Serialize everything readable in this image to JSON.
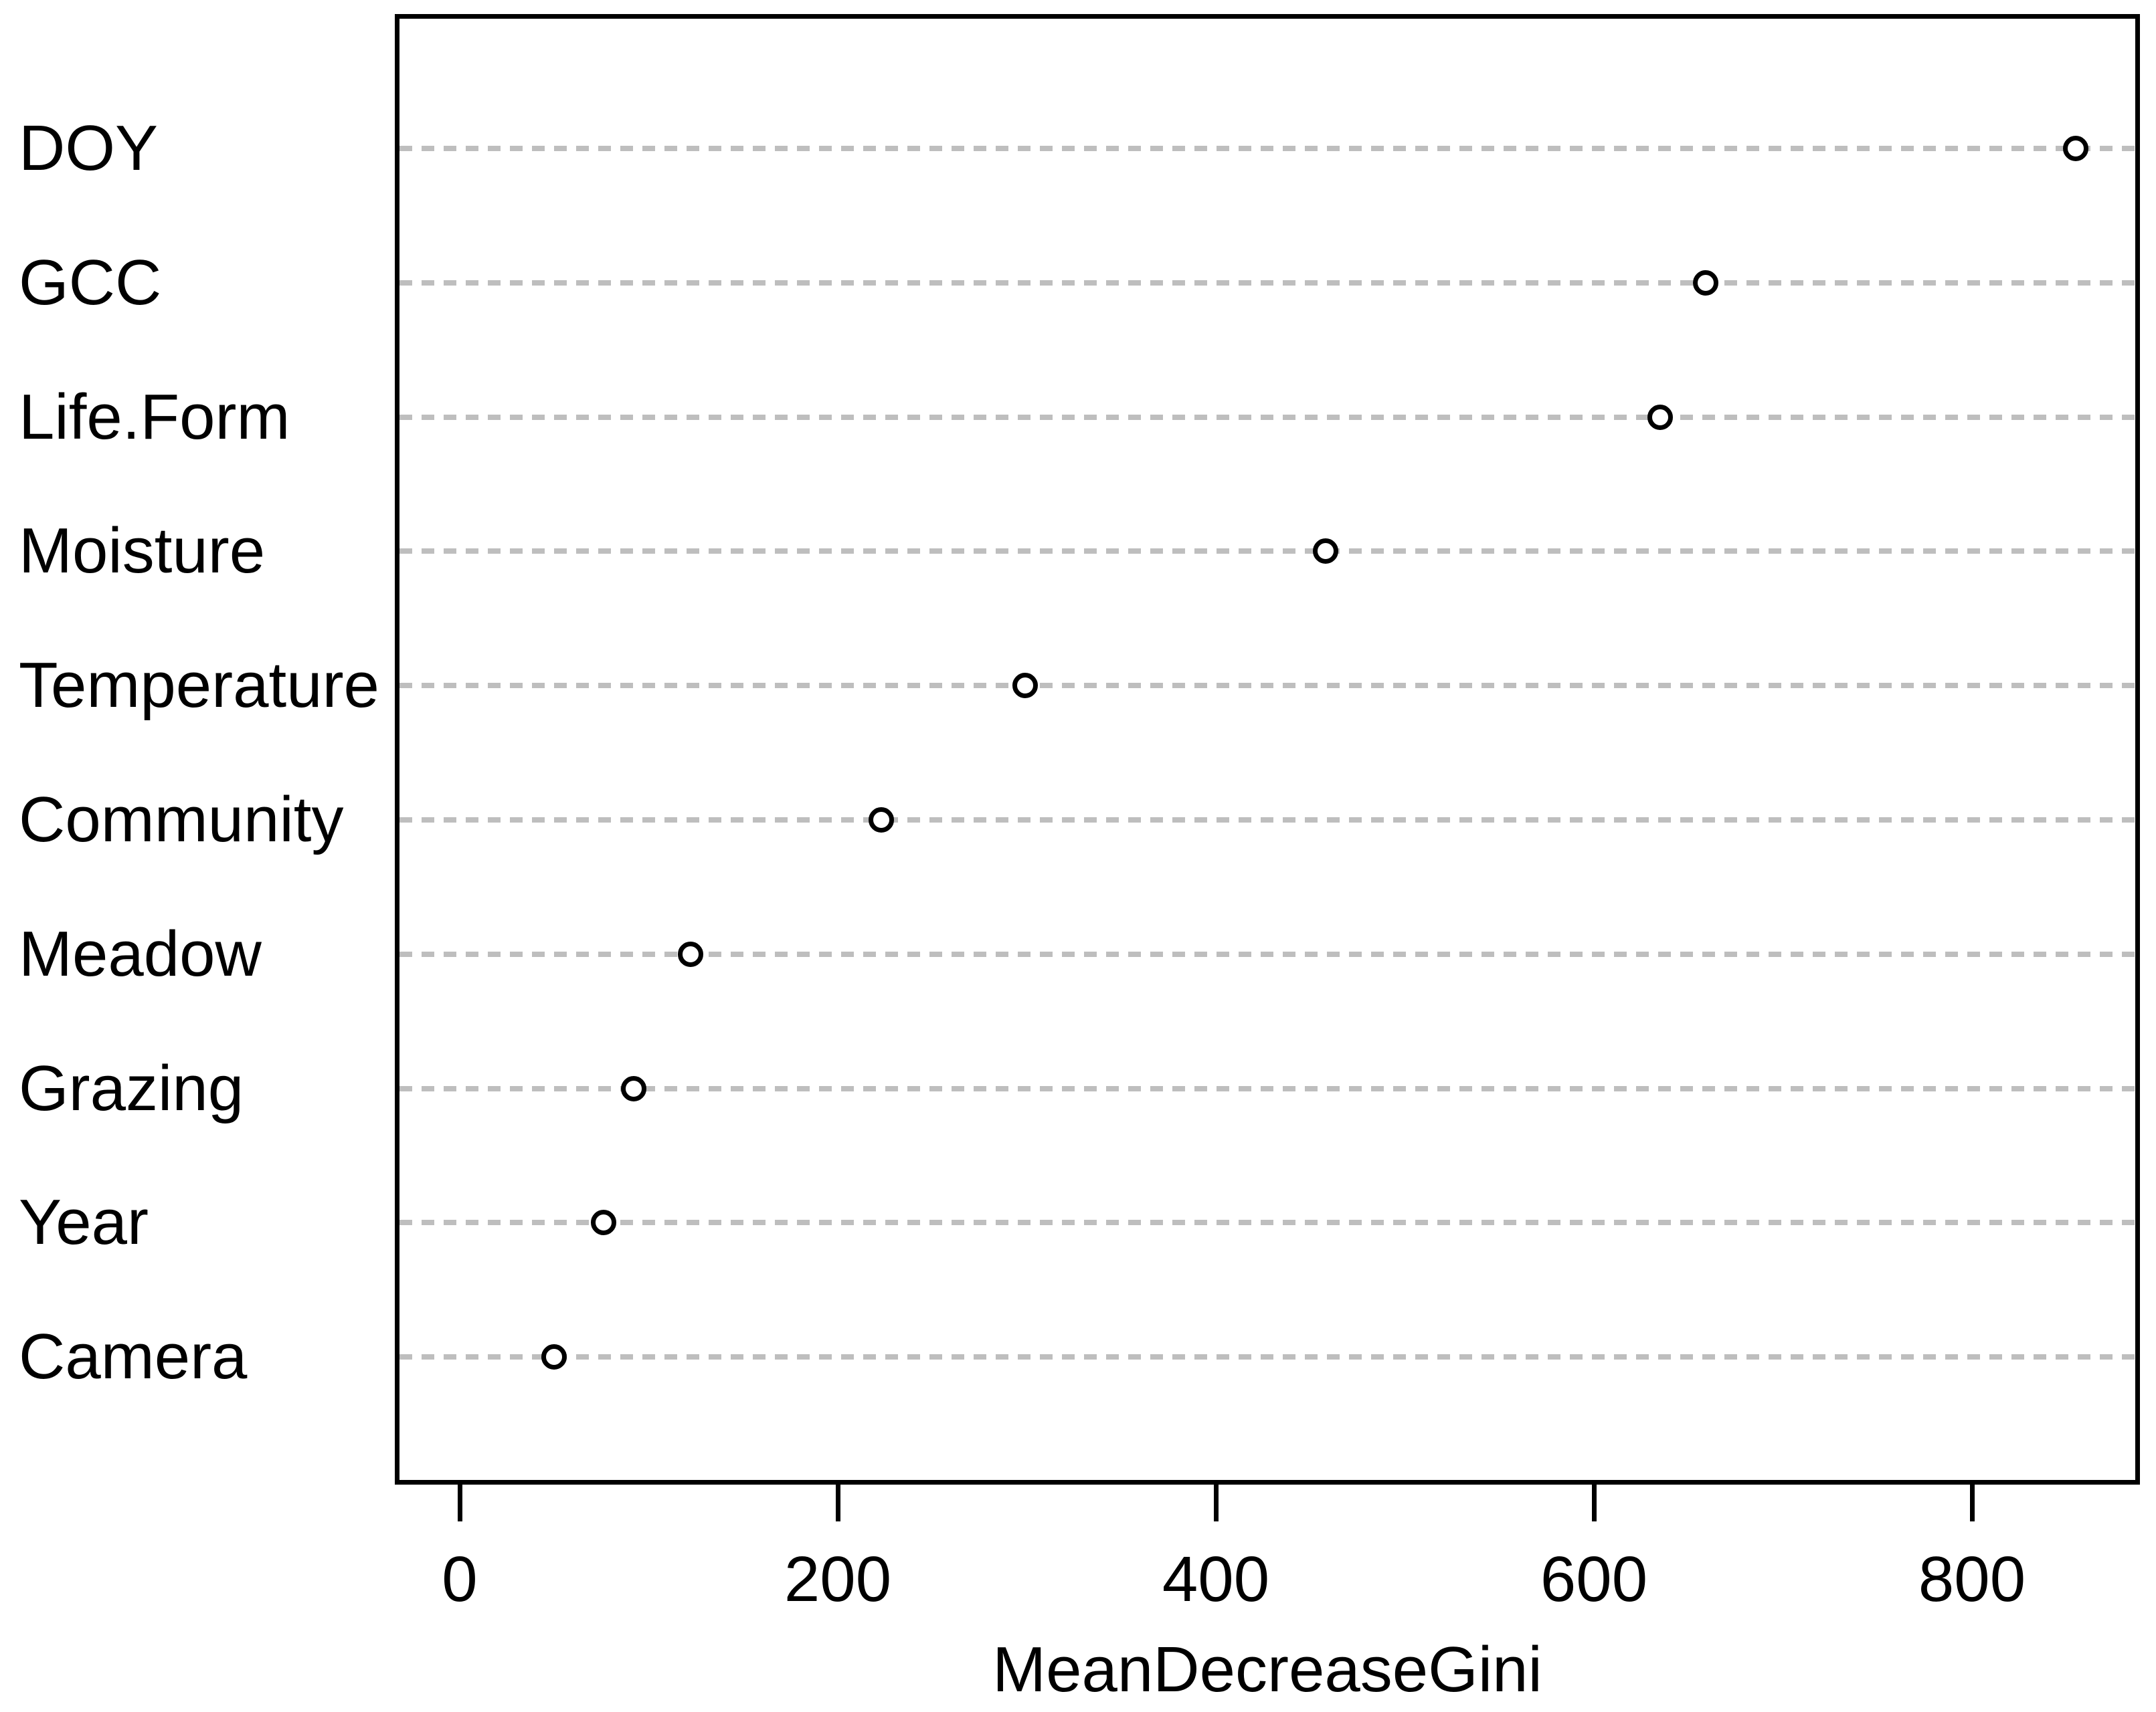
{
  "chart_data": {
    "type": "scatter",
    "variant": "dotchart-variable-importance",
    "title": "",
    "xlabel": "MeanDecreaseGini",
    "ylabel": "",
    "categories": [
      "DOY",
      "GCC",
      "Life.Form",
      "Moisture",
      "Temperature",
      "Community",
      "Meadow",
      "Grazing",
      "Year",
      "Camera"
    ],
    "values": [
      855,
      659,
      635,
      458,
      299,
      223,
      122,
      92,
      76,
      50
    ],
    "xticks": [
      0,
      200,
      400,
      600,
      800
    ],
    "xlim": [
      -35,
      890
    ],
    "grid": "horizontal dashed line per category",
    "legend": "none",
    "marker": "open-circle",
    "colors": {
      "background": "#ffffff",
      "axis": "#000000",
      "text": "#000000",
      "gridline": "#bebebe",
      "marker_stroke": "#000000",
      "marker_fill": "#ffffff"
    }
  }
}
